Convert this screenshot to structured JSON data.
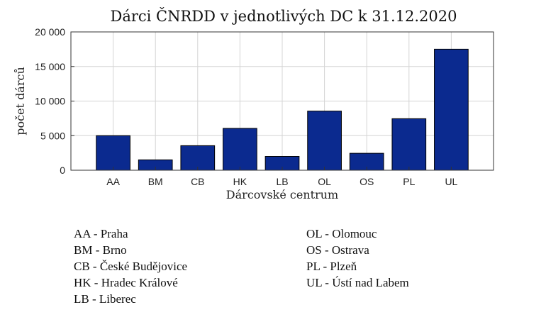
{
  "chart_data": {
    "type": "bar",
    "title": "Dárci ČNRDD v jednotlivých DC k 31.12.2020",
    "xlabel": "Dárcovské centrum",
    "ylabel": "počet dárců",
    "categories": [
      "AA",
      "BM",
      "CB",
      "HK",
      "LB",
      "OL",
      "OS",
      "PL",
      "UL"
    ],
    "values": [
      5000,
      1500,
      3550,
      6050,
      2000,
      8550,
      2450,
      7450,
      17500
    ],
    "ylim": [
      0,
      20000
    ],
    "yticks": [
      0,
      5000,
      10000,
      15000,
      20000
    ],
    "ytick_labels": [
      "0",
      "5 000",
      "10 000",
      "15 000",
      "20 000"
    ],
    "grid": true,
    "bar_color": "#0b2a8f"
  },
  "legend_left": [
    "AA - Praha",
    "BM - Brno",
    "CB - České Budějovice",
    "HK - Hradec Králové",
    "LB - Liberec"
  ],
  "legend_right": [
    "OL - Olomouc",
    "OS - Ostrava",
    "PL - Plzeň",
    "UL - Ústí nad Labem"
  ]
}
